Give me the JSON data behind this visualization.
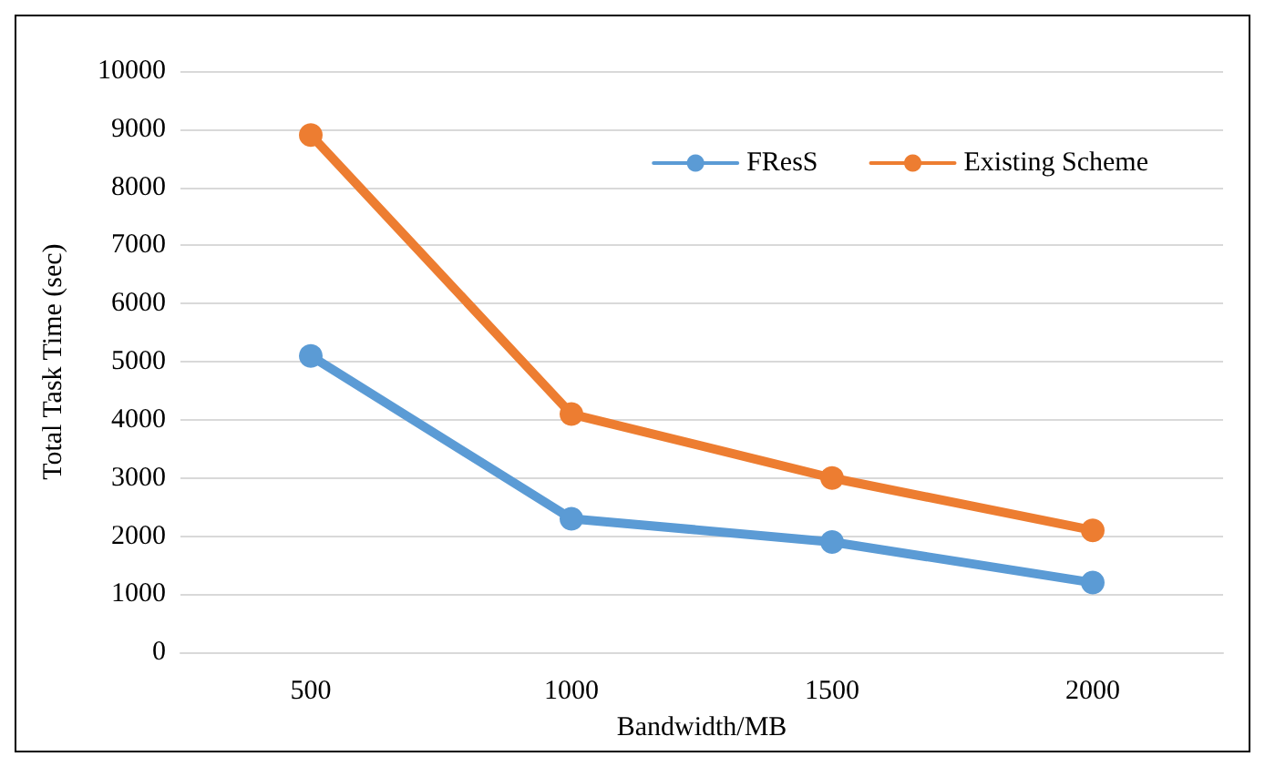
{
  "chart_data": {
    "type": "line",
    "xlabel": "Bandwidth/MB",
    "ylabel": "Total Task Time (sec)",
    "categories": [
      "500",
      "1000",
      "1500",
      "2000"
    ],
    "series": [
      {
        "name": "FResS",
        "color": "#5b9bd5",
        "values": [
          5100,
          2300,
          1900,
          1200
        ]
      },
      {
        "name": "Existing Scheme",
        "color": "#ed7d31",
        "values": [
          8900,
          4100,
          3000,
          2100
        ]
      }
    ],
    "ylim": [
      0,
      10000
    ],
    "yticks": [
      0,
      1000,
      2000,
      3000,
      4000,
      5000,
      6000,
      7000,
      8000,
      9000,
      10000
    ],
    "grid": "y",
    "legend": "top right",
    "marker": "circle",
    "line_style": "solid"
  }
}
